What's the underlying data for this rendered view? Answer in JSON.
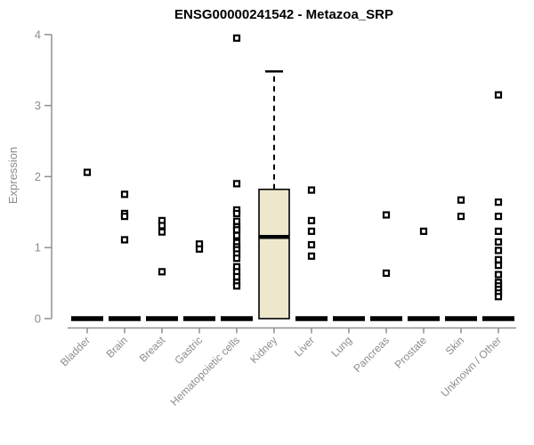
{
  "chart_data": {
    "type": "boxplot",
    "title": "ENSG00000241542 - Metazoa_SRP",
    "ylabel": "Expression",
    "xlabel": "",
    "ylim": [
      0,
      4
    ],
    "yticks": [
      "0",
      "1",
      "2",
      "3",
      "4"
    ],
    "grid": false,
    "legend": "none",
    "colors": {
      "box_fill": "#EDE8CC",
      "box_stroke": "#000000",
      "median": "#000000",
      "outlier_stroke": "#000000",
      "outlier_fill": "#ffffff",
      "axis": "#909090",
      "labels": "#8C8C8C",
      "title": "#000000",
      "background": "#FFFFFF"
    },
    "categories": [
      "Bladder",
      "Brain",
      "Breast",
      "Gastric",
      "Hematopoietic cells",
      "Kidney",
      "Liver",
      "Lung",
      "Pancreas",
      "Prostate",
      "Skin",
      "Unknown / Other"
    ],
    "boxes": [
      {
        "category": "Bladder",
        "q1": 0,
        "median": 0,
        "q3": 0,
        "whisker_low": 0,
        "whisker_high": 0,
        "outliers": [
          2.06
        ]
      },
      {
        "category": "Brain",
        "q1": 0,
        "median": 0,
        "q3": 0,
        "whisker_low": 0,
        "whisker_high": 0,
        "outliers": [
          1.75,
          1.48,
          1.44,
          1.11
        ]
      },
      {
        "category": "Breast",
        "q1": 0,
        "median": 0,
        "q3": 0,
        "whisker_low": 0,
        "whisker_high": 0,
        "outliers": [
          1.38,
          1.31,
          1.22,
          0.66
        ]
      },
      {
        "category": "Gastric",
        "q1": 0,
        "median": 0,
        "q3": 0,
        "whisker_low": 0,
        "whisker_high": 0,
        "outliers": [
          1.05,
          0.98
        ]
      },
      {
        "category": "Hematopoietic cells",
        "q1": 0,
        "median": 0,
        "q3": 0,
        "whisker_low": 0,
        "whisker_high": 0,
        "outliers": [
          3.95,
          1.9,
          1.53,
          1.48,
          1.37,
          1.29,
          1.25,
          1.17,
          1.07,
          1.01,
          0.97,
          0.91,
          0.85,
          0.73,
          0.66,
          0.59,
          0.51,
          0.46
        ]
      },
      {
        "category": "Kidney",
        "q1": 0,
        "median": 1.15,
        "q3": 1.82,
        "whisker_low": 0,
        "whisker_high": 3.48,
        "outliers": []
      },
      {
        "category": "Liver",
        "q1": 0,
        "median": 0,
        "q3": 0,
        "whisker_low": 0,
        "whisker_high": 0,
        "outliers": [
          1.81,
          1.38,
          1.23,
          1.04,
          0.88
        ]
      },
      {
        "category": "Lung",
        "q1": 0,
        "median": 0,
        "q3": 0,
        "whisker_low": 0,
        "whisker_high": 0,
        "outliers": []
      },
      {
        "category": "Pancreas",
        "q1": 0,
        "median": 0,
        "q3": 0,
        "whisker_low": 0,
        "whisker_high": 0,
        "outliers": [
          1.46,
          0.64
        ]
      },
      {
        "category": "Prostate",
        "q1": 0,
        "median": 0,
        "q3": 0,
        "whisker_low": 0,
        "whisker_high": 0,
        "outliers": [
          1.23
        ]
      },
      {
        "category": "Skin",
        "q1": 0,
        "median": 0,
        "q3": 0,
        "whisker_low": 0,
        "whisker_high": 0,
        "outliers": [
          1.67,
          1.44
        ]
      },
      {
        "category": "Unknown / Other",
        "q1": 0,
        "median": 0,
        "q3": 0,
        "whisker_low": 0,
        "whisker_high": 0,
        "outliers": [
          3.15,
          1.64,
          1.44,
          1.23,
          1.08,
          0.96,
          0.83,
          0.75,
          0.62,
          0.51,
          0.46,
          0.41,
          0.36,
          0.31
        ]
      }
    ]
  }
}
